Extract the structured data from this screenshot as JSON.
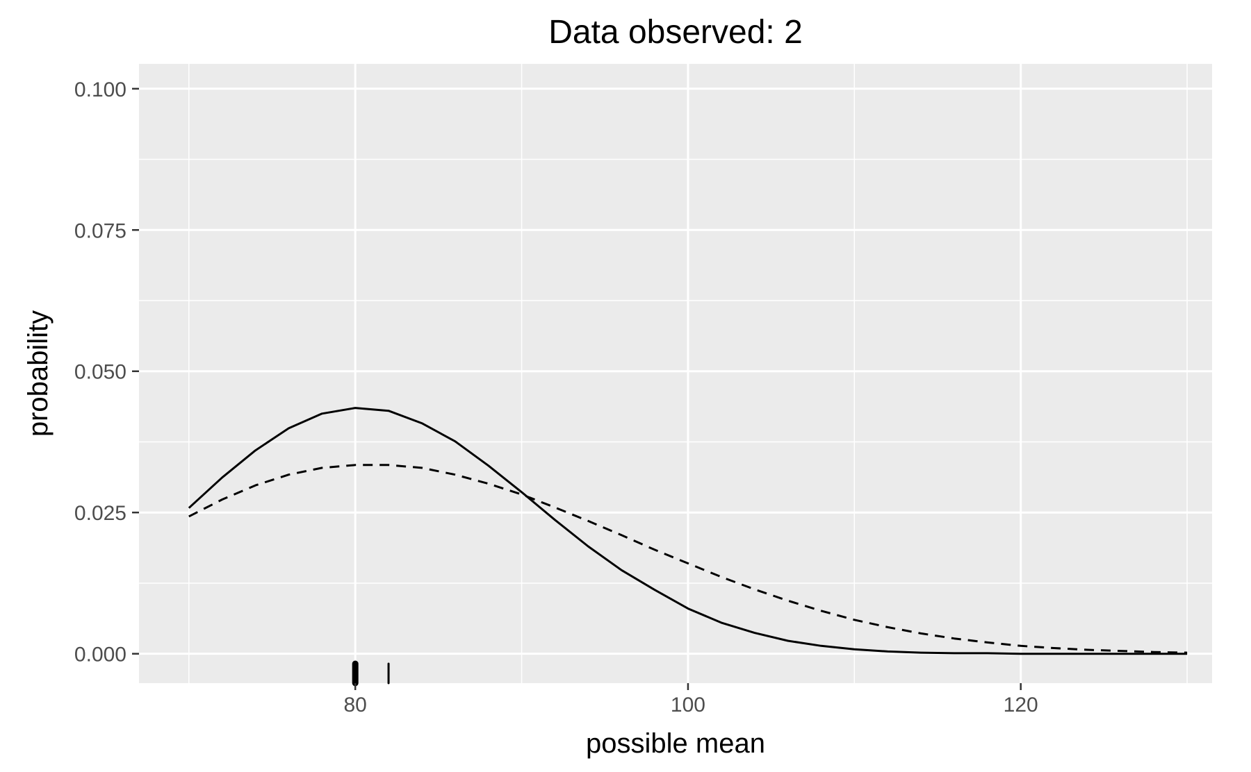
{
  "chart_data": {
    "type": "line",
    "title": "Data observed: 2",
    "xlabel": "possible mean",
    "ylabel": "probability",
    "xlim": [
      67,
      131.5
    ],
    "ylim": [
      -0.0052,
      0.1044
    ],
    "x_ticks": [
      80,
      100,
      120
    ],
    "x_tick_labels": [
      "80",
      "100",
      "120"
    ],
    "y_ticks": [
      0,
      0.025,
      0.05,
      0.075,
      0.1
    ],
    "y_tick_labels": [
      "0.000",
      "0.025",
      "0.050",
      "0.075",
      "0.100"
    ],
    "grid": true,
    "legend": "none",
    "series": [
      {
        "line_style": "solid",
        "color": "#000000",
        "x": [
          70,
          72,
          74,
          76,
          78,
          80,
          82,
          84,
          86,
          88,
          90,
          92,
          94,
          96,
          98,
          100,
          102,
          104,
          106,
          108,
          110,
          112,
          114,
          116,
          118,
          120,
          122,
          124,
          126,
          128,
          130
        ],
        "y": [
          0.0258,
          0.0312,
          0.036,
          0.0399,
          0.0425,
          0.0435,
          0.043,
          0.0408,
          0.0376,
          0.0333,
          0.0286,
          0.0237,
          0.019,
          0.0148,
          0.0113,
          0.008,
          0.0055,
          0.0037,
          0.0023,
          0.0014,
          0.0008,
          0.0004,
          0.0002,
          0.0001,
          0.0001,
          0.0,
          0.0,
          0.0,
          0.0,
          0.0,
          0.0
        ]
      },
      {
        "line_style": "dashed",
        "color": "#000000",
        "x": [
          70,
          72,
          74,
          76,
          78,
          80,
          82,
          84,
          86,
          88,
          90,
          92,
          94,
          96,
          98,
          100,
          102,
          104,
          106,
          108,
          110,
          112,
          114,
          116,
          118,
          120,
          122,
          124,
          126,
          128,
          130
        ],
        "y": [
          0.0243,
          0.0273,
          0.0298,
          0.0317,
          0.0329,
          0.0334,
          0.0334,
          0.0329,
          0.0317,
          0.0301,
          0.0282,
          0.0259,
          0.0235,
          0.021,
          0.0184,
          0.016,
          0.0136,
          0.0114,
          0.0094,
          0.0076,
          0.006,
          0.0047,
          0.0036,
          0.0027,
          0.002,
          0.0014,
          0.001,
          0.0007,
          0.0005,
          0.0003,
          0.0002
        ]
      }
    ],
    "rug": [
      {
        "x": 80,
        "line_width": 9
      },
      {
        "x": 82,
        "line_width": 3
      }
    ],
    "colors": {
      "panel_background": "#ebebeb",
      "grid_major": "#ffffff",
      "grid_minor": "#f5f5f5",
      "tick_text": "#4d4d4d",
      "tick_mark": "#333333",
      "line": "#000000"
    }
  }
}
